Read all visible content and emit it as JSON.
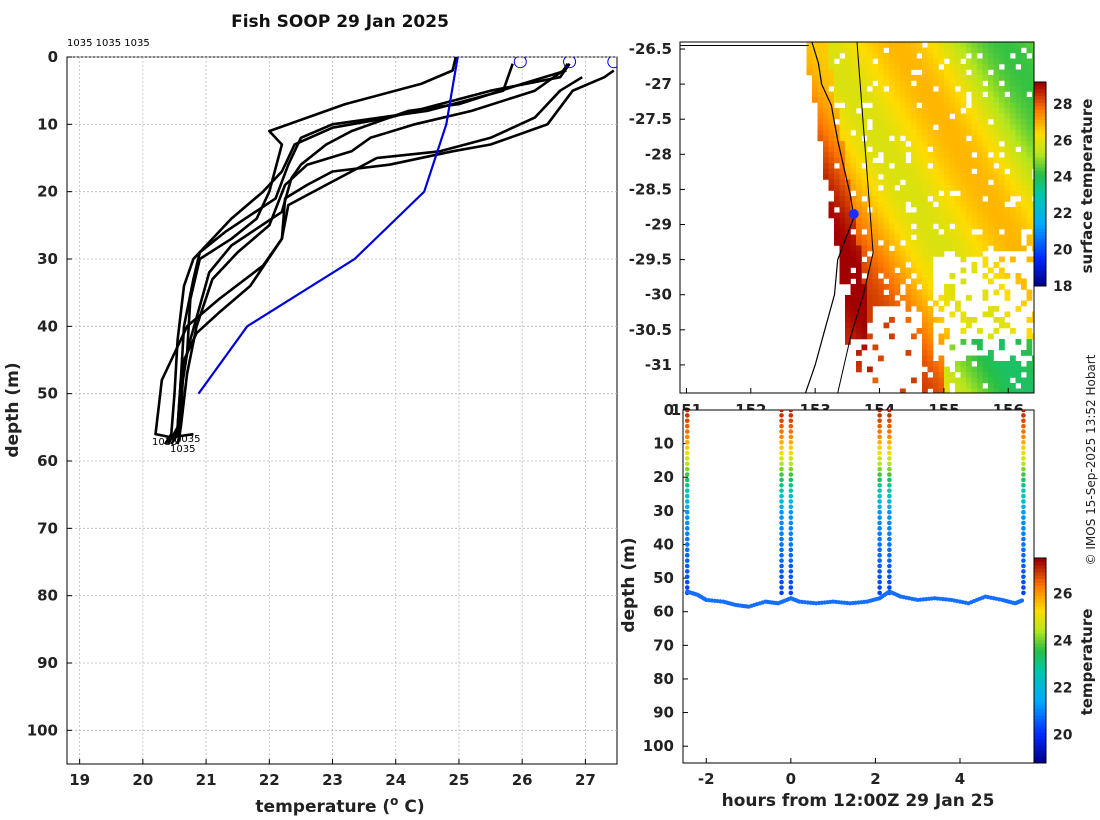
{
  "title": "Fish SOOP 29 Jan 2025",
  "credit": "© IMOS 15-Sep-2025 13:52 Hobart",
  "chart_data": [
    {
      "id": "profiles",
      "type": "line",
      "xlabel": "temperature (",
      "xlabel_sup": "o",
      "xlabel_end": " C)",
      "ylabel": "depth (m)",
      "xlim": [
        18.8,
        27.5
      ],
      "ylim": [
        0,
        105
      ],
      "y_inverted": true,
      "grid": true,
      "xticks": [
        19,
        20,
        21,
        22,
        23,
        24,
        25,
        26,
        27
      ],
      "yticks": [
        0,
        10,
        20,
        30,
        40,
        50,
        60,
        70,
        80,
        90,
        100
      ],
      "top_labels": [
        "1035",
        "1035",
        "1035"
      ],
      "bottom_labels": [
        "1035",
        "1035",
        "1035"
      ],
      "surface_circles_x": [
        25.97,
        26.75,
        27.45
      ],
      "reference": {
        "name": "",
        "color": "#0000dd",
        "points": [
          [
            24.98,
            0
          ],
          [
            24.8,
            10
          ],
          [
            24.45,
            20
          ],
          [
            23.35,
            30
          ],
          [
            21.65,
            40
          ],
          [
            20.88,
            50
          ]
        ]
      },
      "series": [
        {
          "color": "#000000",
          "points": [
            [
              24.95,
              0
            ],
            [
              24.9,
              2
            ],
            [
              24.4,
              4
            ],
            [
              23.2,
              7
            ],
            [
              22.0,
              11
            ],
            [
              22.2,
              13
            ],
            [
              22.0,
              20
            ],
            [
              21.8,
              24
            ],
            [
              21.4,
              27
            ],
            [
              20.9,
              30
            ],
            [
              20.75,
              36
            ],
            [
              20.7,
              44
            ],
            [
              20.6,
              50
            ],
            [
              20.55,
              56
            ],
            [
              20.45,
              57.5
            ]
          ]
        },
        {
          "color": "#000000",
          "points": [
            [
              25.85,
              1
            ],
            [
              25.7,
              5
            ],
            [
              24.5,
              8
            ],
            [
              23.0,
              10
            ],
            [
              22.5,
              12
            ],
            [
              22.3,
              16
            ],
            [
              22.1,
              21
            ],
            [
              21.3,
              26
            ],
            [
              20.9,
              29
            ],
            [
              20.8,
              33
            ],
            [
              20.65,
              40
            ],
            [
              20.6,
              48
            ],
            [
              20.55,
              55
            ],
            [
              20.4,
              57.5
            ]
          ]
        },
        {
          "color": "#000000",
          "points": [
            [
              26.75,
              1
            ],
            [
              26.6,
              3
            ],
            [
              25.5,
              5
            ],
            [
              24.7,
              7
            ],
            [
              23.9,
              9
            ],
            [
              23.0,
              10.5
            ],
            [
              22.4,
              13
            ],
            [
              22.2,
              17
            ],
            [
              21.9,
              20
            ],
            [
              21.4,
              24
            ],
            [
              20.8,
              30
            ],
            [
              20.65,
              34
            ],
            [
              20.55,
              42
            ],
            [
              20.5,
              50
            ],
            [
              20.45,
              56
            ],
            [
              20.35,
              57.5
            ]
          ]
        },
        {
          "color": "#000000",
          "points": [
            [
              26.7,
              2
            ],
            [
              26.0,
              4
            ],
            [
              25.0,
              7
            ],
            [
              24.2,
              8
            ],
            [
              23.3,
              11
            ],
            [
              22.9,
              13
            ],
            [
              22.5,
              16
            ],
            [
              22.35,
              18
            ],
            [
              22.2,
              23
            ],
            [
              21.4,
              28
            ],
            [
              21.05,
              32
            ],
            [
              20.9,
              37
            ],
            [
              20.75,
              42
            ],
            [
              20.6,
              48
            ],
            [
              20.55,
              55
            ],
            [
              20.5,
              57
            ]
          ]
        },
        {
          "color": "#000000",
          "points": [
            [
              26.72,
              1
            ],
            [
              26.65,
              2
            ],
            [
              26.2,
              5
            ],
            [
              25.2,
              8
            ],
            [
              24.3,
              10
            ],
            [
              23.6,
              12
            ],
            [
              23.3,
              14
            ],
            [
              22.6,
              16
            ],
            [
              22.25,
              19
            ],
            [
              22.0,
              25
            ],
            [
              21.5,
              29
            ],
            [
              21.1,
              33
            ],
            [
              20.85,
              40
            ],
            [
              20.7,
              47
            ],
            [
              20.6,
              55
            ],
            [
              20.55,
              57.5
            ]
          ]
        },
        {
          "color": "#000000",
          "points": [
            [
              26.95,
              3
            ],
            [
              26.6,
              5
            ],
            [
              26.2,
              9
            ],
            [
              25.5,
              12
            ],
            [
              24.7,
              14
            ],
            [
              23.7,
              15
            ],
            [
              23.3,
              17
            ],
            [
              22.9,
              19
            ],
            [
              22.3,
              22
            ],
            [
              22.2,
              27
            ],
            [
              21.7,
              34
            ],
            [
              21.2,
              38
            ],
            [
              20.85,
              41
            ],
            [
              20.65,
              45
            ],
            [
              20.6,
              53
            ],
            [
              20.58,
              57
            ]
          ]
        },
        {
          "color": "#000000",
          "points": [
            [
              27.45,
              2
            ],
            [
              27.3,
              3
            ],
            [
              26.8,
              5
            ],
            [
              26.4,
              10
            ],
            [
              25.5,
              13
            ],
            [
              24.9,
              14
            ],
            [
              23.9,
              16
            ],
            [
              23.0,
              17
            ],
            [
              22.6,
              19
            ],
            [
              22.25,
              21
            ],
            [
              22.2,
              27
            ],
            [
              21.9,
              31
            ],
            [
              21.2,
              36
            ],
            [
              20.7,
              40
            ],
            [
              20.45,
              45
            ],
            [
              20.3,
              48
            ],
            [
              20.25,
              52
            ],
            [
              20.2,
              56
            ],
            [
              20.45,
              56.5
            ],
            [
              20.8,
              56
            ]
          ]
        }
      ]
    },
    {
      "id": "map",
      "type": "heatmap",
      "colorbar_label": "surface temperature",
      "colorbar_ticks": [
        18,
        20,
        22,
        24,
        26,
        28
      ],
      "colorbar_range": [
        18,
        29.2
      ],
      "xlim": [
        150.9,
        156.4
      ],
      "ylim": [
        -31.4,
        -26.4
      ],
      "xticks": [
        151,
        152,
        153,
        154,
        155,
        156
      ],
      "xtick_labels": [
        "151",
        "152",
        "153",
        "154",
        "155",
        "156"
      ],
      "yticks": [
        -26.5,
        -27,
        -27.5,
        -28,
        -28.5,
        -29,
        -29.5,
        -30,
        -30.5,
        -31
      ],
      "vessel_position": [
        153.6,
        -28.85
      ]
    },
    {
      "id": "timeseries",
      "type": "scatter",
      "xlabel": "hours from 12:00Z 29 Jan 25",
      "ylabel": "depth (m)",
      "xlim": [
        -2.55,
        5.75
      ],
      "ylim": [
        0,
        105
      ],
      "y_inverted": true,
      "xticks": [
        -2,
        0,
        2,
        4
      ],
      "yticks": [
        0,
        10,
        20,
        30,
        40,
        50,
        60,
        70,
        80,
        90,
        100
      ],
      "colorbar_label": "temperature",
      "colorbar_ticks": [
        20,
        22,
        24,
        26
      ],
      "colorbar_range": [
        18.8,
        27.5
      ],
      "casts_hours": [
        -2.45,
        -0.22,
        0.0,
        2.1,
        2.33,
        5.5
      ],
      "bottom_track": [
        [
          -2.45,
          54
        ],
        [
          -2.2,
          55
        ],
        [
          -2.0,
          56.5
        ],
        [
          -1.6,
          57
        ],
        [
          -1.3,
          58
        ],
        [
          -1.0,
          58.5
        ],
        [
          -0.6,
          57
        ],
        [
          -0.3,
          57.5
        ],
        [
          0.0,
          56
        ],
        [
          0.2,
          57
        ],
        [
          0.6,
          57.5
        ],
        [
          1.0,
          57
        ],
        [
          1.4,
          57.5
        ],
        [
          1.8,
          57
        ],
        [
          2.1,
          56
        ],
        [
          2.33,
          54
        ],
        [
          2.6,
          55.5
        ],
        [
          3.0,
          56.5
        ],
        [
          3.4,
          56
        ],
        [
          3.8,
          56.5
        ],
        [
          4.2,
          57.5
        ],
        [
          4.6,
          55.5
        ],
        [
          5.0,
          56.5
        ],
        [
          5.3,
          57.5
        ],
        [
          5.5,
          56.5
        ]
      ]
    }
  ]
}
